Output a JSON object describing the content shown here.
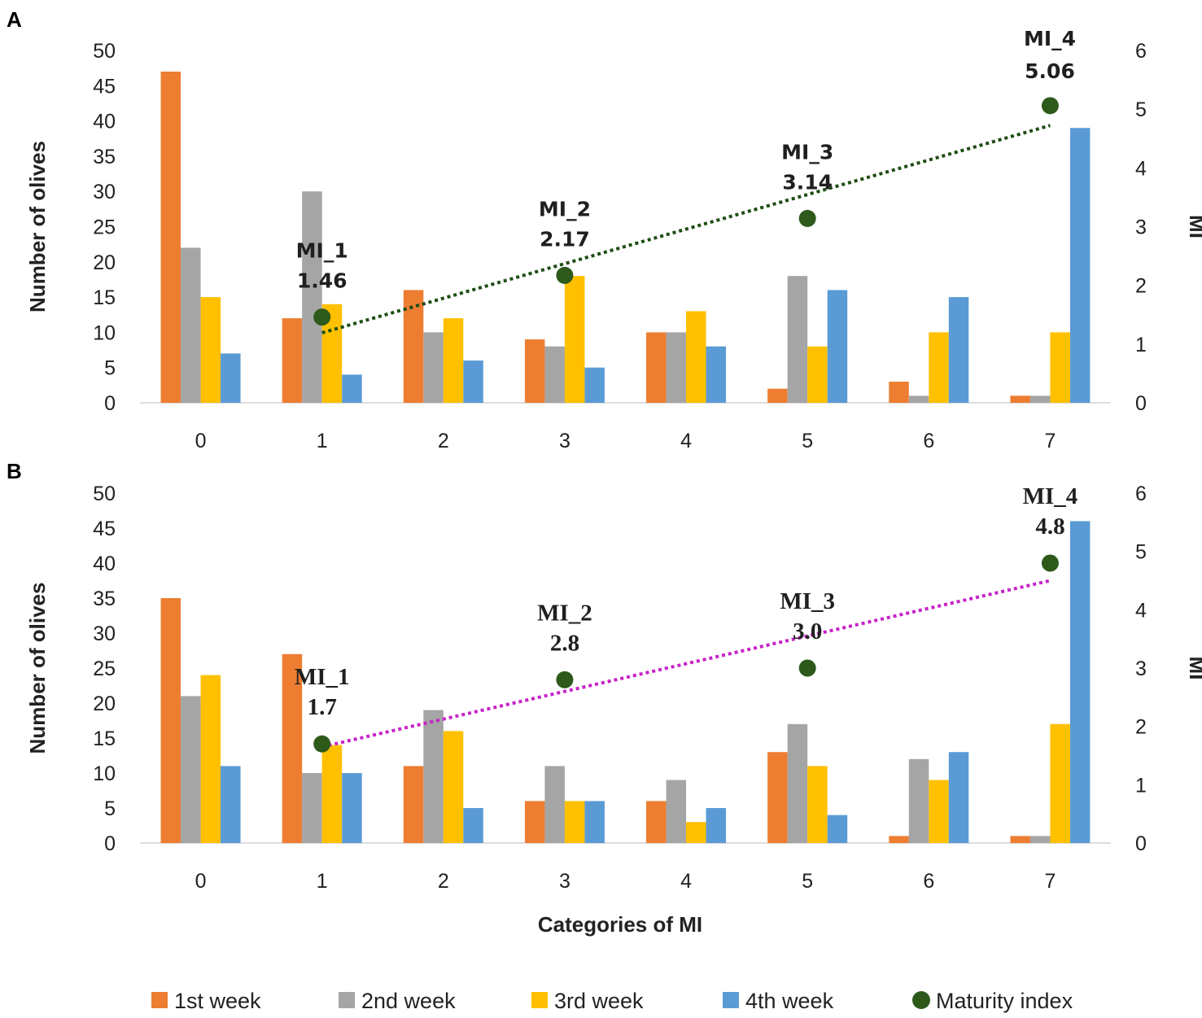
{
  "figure": {
    "shared_xlabel": "Categories of MI",
    "legend": [
      {
        "label": "1st week",
        "color": "#ED7D31",
        "marker": "square"
      },
      {
        "label": "2nd week",
        "color": "#A5A5A5",
        "marker": "square"
      },
      {
        "label": "3rd week",
        "color": "#FFC000",
        "marker": "square"
      },
      {
        "label": "4th week",
        "color": "#5B9BD5",
        "marker": "square"
      },
      {
        "label": "Maturity index",
        "color": "#2D5A1B",
        "marker": "circle"
      }
    ]
  },
  "chart_data": [
    {
      "panel": "A",
      "type": "bar",
      "categories": [
        "0",
        "1",
        "2",
        "3",
        "4",
        "5",
        "6",
        "7"
      ],
      "ylabel": "Number of olives",
      "ylim": [
        0,
        50
      ],
      "yticks": [
        "0",
        "5",
        "10",
        "15",
        "20",
        "25",
        "30",
        "35",
        "40",
        "45",
        "50"
      ],
      "y2label": "MI",
      "y2lim": [
        0,
        6
      ],
      "y2ticks": [
        "0",
        "1",
        "2",
        "3",
        "4",
        "5",
        "6"
      ],
      "series": [
        {
          "name": "1st week",
          "color": "#ED7D31",
          "values": [
            47,
            12,
            16,
            9,
            10,
            2,
            3,
            1
          ]
        },
        {
          "name": "2nd week",
          "color": "#A5A5A5",
          "values": [
            22,
            30,
            10,
            8,
            10,
            18,
            1,
            1
          ]
        },
        {
          "name": "3rd week",
          "color": "#FFC000",
          "values": [
            15,
            14,
            12,
            18,
            13,
            8,
            10,
            10
          ]
        },
        {
          "name": "4th week",
          "color": "#5B9BD5",
          "values": [
            7,
            4,
            6,
            5,
            8,
            16,
            15,
            39
          ]
        }
      ],
      "maturity_index": {
        "name": "Maturity index",
        "color": "#2D5A1B",
        "trend_color": "#1E4D14",
        "points": [
          {
            "x": 1,
            "y": 1.46,
            "label": "MI_1",
            "value_label": "1.46"
          },
          {
            "x": 3,
            "y": 2.17,
            "label": "MI_2",
            "value_label": "2.17"
          },
          {
            "x": 5,
            "y": 3.14,
            "label": "MI_3",
            "value_label": "3.14"
          },
          {
            "x": 7,
            "y": 5.06,
            "label": "MI_4",
            "value_label": "5.06"
          }
        ]
      }
    },
    {
      "panel": "B",
      "type": "bar",
      "categories": [
        "0",
        "1",
        "2",
        "3",
        "4",
        "5",
        "6",
        "7"
      ],
      "ylabel": "Number of olives",
      "ylim": [
        0,
        50
      ],
      "yticks": [
        "0",
        "5",
        "10",
        "15",
        "20",
        "25",
        "30",
        "35",
        "40",
        "45",
        "50"
      ],
      "y2label": "MI",
      "y2lim": [
        0,
        6
      ],
      "y2ticks": [
        "0",
        "1",
        "2",
        "3",
        "4",
        "5",
        "6"
      ],
      "series": [
        {
          "name": "1st week",
          "color": "#ED7D31",
          "values": [
            35,
            27,
            11,
            6,
            6,
            13,
            1,
            1
          ]
        },
        {
          "name": "2nd week",
          "color": "#A5A5A5",
          "values": [
            21,
            10,
            19,
            11,
            9,
            17,
            12,
            1
          ]
        },
        {
          "name": "3rd week",
          "color": "#FFC000",
          "values": [
            24,
            14,
            16,
            6,
            3,
            11,
            9,
            17
          ]
        },
        {
          "name": "4th week",
          "color": "#5B9BD5",
          "values": [
            11,
            10,
            5,
            6,
            5,
            4,
            13,
            46
          ]
        }
      ],
      "maturity_index": {
        "name": "Maturity index",
        "color": "#2D5A1B",
        "trend_color": "#C722C7",
        "points": [
          {
            "x": 1,
            "y": 1.7,
            "label": "MI_1",
            "value_label": "1.7"
          },
          {
            "x": 3,
            "y": 2.8,
            "label": "MI_2",
            "value_label": "2.8"
          },
          {
            "x": 5,
            "y": 3.0,
            "label": "MI_3",
            "value_label": "3.0"
          },
          {
            "x": 7,
            "y": 4.8,
            "label": "MI_4",
            "value_label": "4.8"
          }
        ]
      }
    }
  ]
}
